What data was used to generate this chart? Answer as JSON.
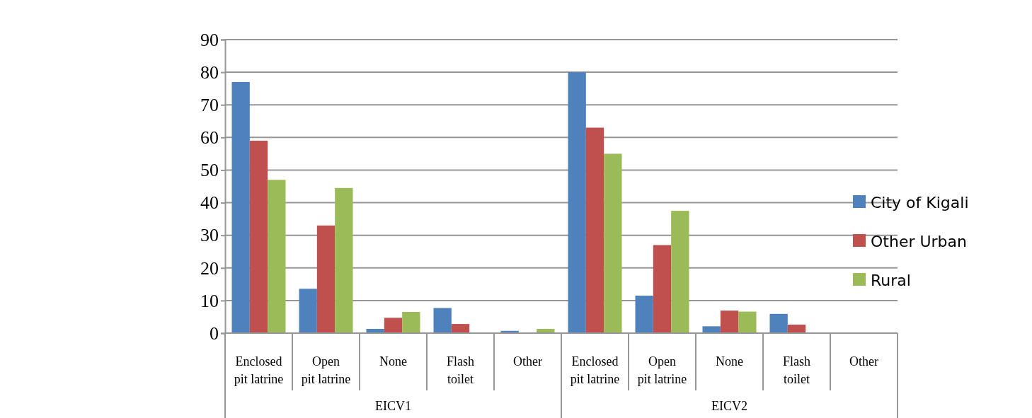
{
  "chart_data": {
    "type": "bar",
    "categories": [
      "Enclosed pit latrine",
      "Open pit latrine",
      "None",
      "Flash toilet",
      "Other",
      "Enclosed pit latrine",
      "Open pit latrine",
      "None",
      "Flash toilet",
      "Other"
    ],
    "series": [
      {
        "name": "City of Kigali",
        "color": "#4f81bd",
        "values": [
          77,
          13.6,
          1.3,
          7.7,
          0.7,
          80,
          11.5,
          2.1,
          5.9,
          0.1
        ]
      },
      {
        "name": "Other Urban",
        "color": "#c0504d",
        "values": [
          59,
          33,
          4.7,
          2.8,
          null,
          63,
          27,
          6.9,
          2.6,
          0.1
        ]
      },
      {
        "name": "Rural",
        "color": "#9bbb59",
        "values": [
          47,
          44.5,
          6.5,
          null,
          1.3,
          55,
          37.5,
          6.6,
          0.2,
          0.1
        ]
      }
    ],
    "ylim": [
      0,
      90
    ],
    "yticks": [
      0,
      10,
      20,
      30,
      40,
      50,
      60,
      70,
      80,
      90
    ],
    "grid": "y",
    "legend": "right",
    "annotations": [
      "EICV1",
      "EICV2"
    ]
  }
}
